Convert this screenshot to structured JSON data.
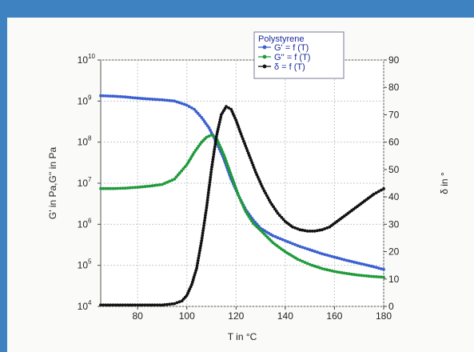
{
  "chart_data": {
    "type": "line",
    "title": "",
    "xlabel": "T in °C",
    "ylabel_left": "G' in Pa,G'' in Pa",
    "ylabel_right": "δ in °",
    "xlim": [
      65,
      180
    ],
    "ylim_left": [
      4,
      10
    ],
    "ylim_left_scale": "log10",
    "ylim_right": [
      0,
      90
    ],
    "x_ticks": [
      80,
      100,
      120,
      140,
      160,
      180
    ],
    "left_ticks": [
      {
        "v": 4,
        "label": "10"
      },
      {
        "v": 5,
        "label": "10"
      },
      {
        "v": 6,
        "label": "10"
      },
      {
        "v": 7,
        "label": "10"
      },
      {
        "v": 8,
        "label": "10"
      },
      {
        "v": 9,
        "label": "10"
      },
      {
        "v": 10,
        "label": "10"
      }
    ],
    "left_exponents": [
      "4",
      "5",
      "6",
      "7",
      "8",
      "9",
      "10"
    ],
    "right_ticks": [
      0,
      10,
      20,
      30,
      40,
      50,
      60,
      70,
      80,
      90
    ],
    "grid": true,
    "legend": {
      "title": "Polystyrene",
      "placement": "top-center"
    },
    "series": [
      {
        "name": "G' = f (T)",
        "color": "#3a5fd0",
        "axis": "left",
        "x": [
          65,
          70,
          75,
          80,
          85,
          90,
          95,
          100,
          103,
          106,
          109,
          112,
          115,
          118,
          121,
          124,
          127,
          130,
          135,
          140,
          145,
          150,
          155,
          160,
          165,
          170,
          175,
          180
        ],
        "y": [
          9.13,
          9.12,
          9.1,
          9.07,
          9.05,
          9.03,
          9.0,
          8.9,
          8.8,
          8.6,
          8.35,
          8.0,
          7.6,
          7.1,
          6.7,
          6.35,
          6.1,
          5.9,
          5.72,
          5.6,
          5.48,
          5.38,
          5.28,
          5.2,
          5.12,
          5.05,
          4.98,
          4.9
        ]
      },
      {
        "name": "G'' = f (T)",
        "color": "#1f9a3a",
        "axis": "left",
        "x": [
          65,
          70,
          75,
          80,
          85,
          90,
          95,
          100,
          103,
          106,
          108,
          110,
          112,
          115,
          118,
          121,
          124,
          127,
          130,
          135,
          140,
          145,
          150,
          155,
          160,
          165,
          170,
          175,
          180
        ],
        "y": [
          6.87,
          6.87,
          6.88,
          6.9,
          6.93,
          6.97,
          7.1,
          7.45,
          7.75,
          8.0,
          8.12,
          8.17,
          8.1,
          7.7,
          7.2,
          6.7,
          6.3,
          6.02,
          5.85,
          5.55,
          5.33,
          5.15,
          5.02,
          4.92,
          4.85,
          4.8,
          4.76,
          4.73,
          4.71
        ]
      },
      {
        "name": "δ = f (T)",
        "color": "#111111",
        "axis": "right",
        "x": [
          65,
          70,
          75,
          80,
          85,
          90,
          95,
          98,
          100,
          102,
          104,
          106,
          108,
          110,
          112,
          114,
          116,
          118,
          120,
          122,
          125,
          128,
          131,
          134,
          137,
          140,
          143,
          146,
          149,
          152,
          155,
          158,
          161,
          164,
          167,
          170,
          173,
          176,
          180
        ],
        "y": [
          0.5,
          0.5,
          0.5,
          0.5,
          0.5,
          0.5,
          1,
          2,
          4,
          8,
          14,
          24,
          36,
          50,
          62,
          70,
          73,
          72,
          68,
          63,
          56,
          49,
          43,
          38,
          34,
          31,
          29,
          28,
          27.5,
          27.5,
          28,
          29,
          31,
          33,
          35,
          37,
          39,
          41,
          43
        ]
      }
    ]
  }
}
